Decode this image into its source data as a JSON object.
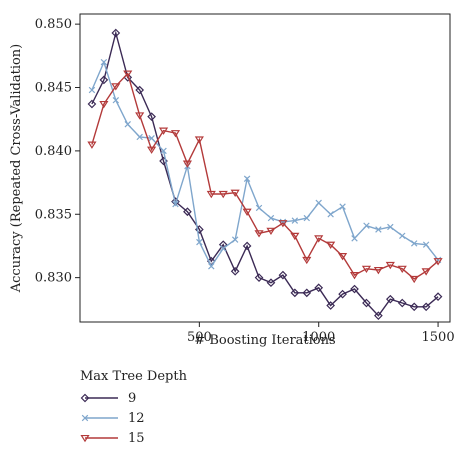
{
  "chart_data": {
    "type": "line",
    "title": "",
    "xlabel": "# Boosting Iterations",
    "ylabel": "Accuracy (Repeated Cross-Validation)",
    "xlim": [
      0,
      1550
    ],
    "ylim": [
      0.8265,
      0.8508
    ],
    "xticks": [
      500,
      1000,
      1500
    ],
    "yticks": [
      0.83,
      0.835,
      0.84,
      0.845,
      0.85
    ],
    "ytick_labels": [
      "0.830",
      "0.835",
      "0.840",
      "0.845",
      "0.850"
    ],
    "xtick_labels": [
      "500",
      "1000",
      "1500"
    ],
    "grid": false,
    "legend": {
      "title": "Max Tree Depth",
      "placement": "bottom-left"
    },
    "x": [
      50,
      100,
      150,
      200,
      250,
      300,
      350,
      400,
      450,
      500,
      550,
      600,
      650,
      700,
      750,
      800,
      850,
      900,
      950,
      1000,
      1050,
      1100,
      1150,
      1200,
      1250,
      1300,
      1350,
      1400,
      1450,
      1500
    ],
    "series": [
      {
        "name": "9",
        "color": "#3b2a55",
        "marker": "diamond",
        "values": [
          0.8437,
          0.8456,
          0.8493,
          0.8458,
          0.8448,
          0.8427,
          0.8392,
          0.836,
          0.8352,
          0.8338,
          0.8313,
          0.8326,
          0.8305,
          0.8325,
          0.83,
          0.8296,
          0.8302,
          0.8288,
          0.8288,
          0.8292,
          0.8278,
          0.8287,
          0.8291,
          0.828,
          0.827,
          0.8283,
          0.828,
          0.8277,
          0.8277,
          0.8285
        ]
      },
      {
        "name": "12",
        "color": "#7fa6cc",
        "marker": "x",
        "values": [
          0.8448,
          0.847,
          0.844,
          0.8421,
          0.8411,
          0.841,
          0.84,
          0.8358,
          0.8388,
          0.8328,
          0.8309,
          0.8323,
          0.833,
          0.8378,
          0.8355,
          0.8347,
          0.8344,
          0.8345,
          0.8347,
          0.8359,
          0.835,
          0.8356,
          0.8331,
          0.8341,
          0.8338,
          0.834,
          0.8333,
          0.8327,
          0.8326,
          0.8314
        ]
      },
      {
        "name": "15",
        "color": "#b33a3a",
        "marker": "triangle-down",
        "values": [
          0.8405,
          0.8437,
          0.8451,
          0.8461,
          0.8428,
          0.8401,
          0.8416,
          0.8414,
          0.839,
          0.8409,
          0.8366,
          0.8366,
          0.8367,
          0.8352,
          0.8335,
          0.8337,
          0.8343,
          0.8333,
          0.8314,
          0.8331,
          0.8326,
          0.8317,
          0.8302,
          0.8307,
          0.8306,
          0.831,
          0.8307,
          0.8299,
          0.8305,
          0.8313
        ]
      }
    ]
  }
}
